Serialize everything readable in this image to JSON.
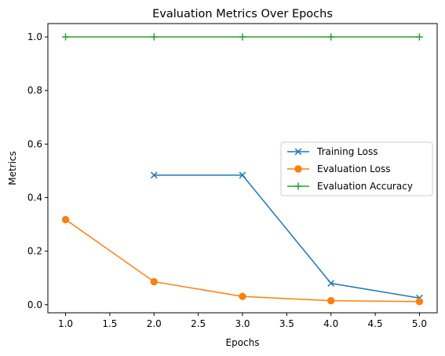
{
  "chart_data": {
    "type": "line",
    "title": "Evaluation Metrics Over Epochs",
    "xlabel": "Epochs",
    "ylabel": "Metrics",
    "xlim": [
      0.8,
      5.2
    ],
    "ylim": [
      -0.03,
      1.05
    ],
    "xticks": [
      "1.0",
      "1.5",
      "2.0",
      "2.5",
      "3.0",
      "3.5",
      "4.0",
      "4.5",
      "5.0"
    ],
    "yticks": [
      "0.0",
      "0.2",
      "0.4",
      "0.6",
      "0.8",
      "1.0"
    ],
    "grid": false,
    "legend_position": "center-right",
    "series": [
      {
        "name": "Training Loss",
        "color": "#1f77b4",
        "marker": "x",
        "x": [
          2,
          3,
          4,
          5
        ],
        "y": [
          0.484,
          0.484,
          0.08,
          0.025
        ]
      },
      {
        "name": "Evaluation Loss",
        "color": "#ff7f0e",
        "marker": "o",
        "x": [
          1,
          2,
          3,
          4,
          5
        ],
        "y": [
          0.318,
          0.086,
          0.031,
          0.015,
          0.012
        ]
      },
      {
        "name": "Evaluation Accuracy",
        "color": "#2ca02c",
        "marker": "+",
        "x": [
          1,
          2,
          3,
          4,
          5
        ],
        "y": [
          1.0,
          1.0,
          1.0,
          1.0,
          1.0
        ]
      }
    ]
  }
}
